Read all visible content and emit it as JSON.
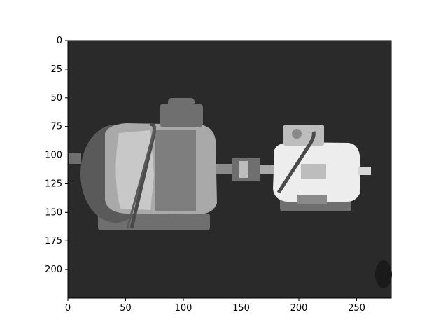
{
  "figure": {
    "background": "#ffffff",
    "image_background": "#2a2a2a"
  },
  "axes": {
    "xlim": [
      0,
      280
    ],
    "ylim": [
      225,
      0
    ],
    "x_ticks": [
      0,
      50,
      100,
      150,
      200,
      250
    ],
    "y_ticks": [
      0,
      25,
      50,
      75,
      100,
      125,
      150,
      175,
      200
    ],
    "x_tick_labels": [
      "0",
      "50",
      "100",
      "150",
      "200",
      "250"
    ],
    "y_tick_labels": [
      "0",
      "25",
      "50",
      "75",
      "100",
      "125",
      "150",
      "175",
      "200"
    ]
  },
  "image_content": {
    "subject": "two electric motors coupled by a shaft",
    "palette": {
      "dark": "#2a2a2a",
      "mid": "#6f6f6f",
      "light": "#a9a9a9",
      "bright": "#ededed"
    }
  }
}
